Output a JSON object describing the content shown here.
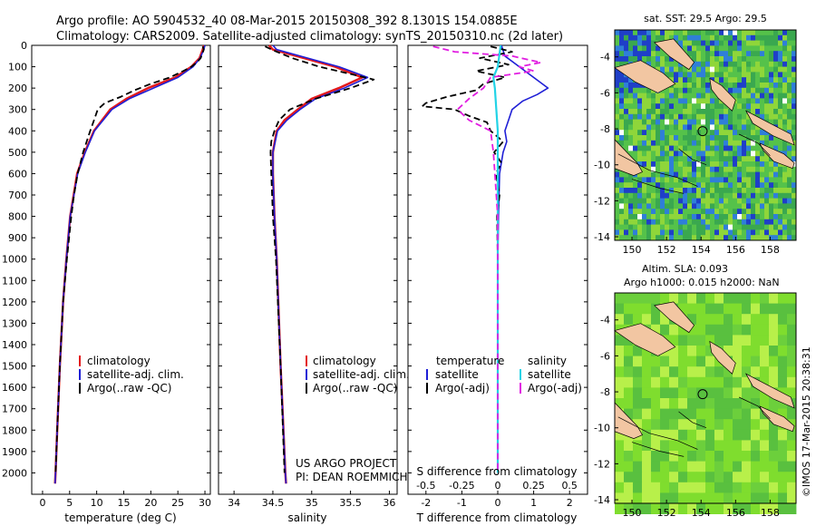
{
  "title": {
    "line1": "Argo profile: AO 5904532_40 08-Mar-2015 20150308_392 8.1301S 154.0885E",
    "line2": "Climatology: CARS2009. Satellite-adjusted climatology: synTS_20150310.nc (2d later)"
  },
  "colors": {
    "climatology": "#e31a1c",
    "satellite": "#1f1fd6",
    "argo": "#000000",
    "sal_satellite": "#22d3e6",
    "sal_argo": "#e11de1",
    "land": "#f2c6a2"
  },
  "chart_data": [
    {
      "type": "line",
      "title": "",
      "xlabel": "temperature (deg C)",
      "ylabel": "",
      "xlim": [
        -2,
        31
      ],
      "ylim": [
        2100,
        0
      ],
      "xticks": [
        0,
        5,
        10,
        15,
        20,
        25,
        30
      ],
      "yticks": [
        0,
        100,
        200,
        300,
        400,
        500,
        600,
        700,
        800,
        900,
        1000,
        1100,
        1200,
        1300,
        1400,
        1500,
        1600,
        1700,
        1800,
        1900,
        2000
      ],
      "legend": [
        "climatology",
        "satellite-adj. clim.",
        "Argo(..raw -QC)"
      ],
      "series": [
        {
          "name": "climatology",
          "depth": [
            0,
            20,
            60,
            100,
            150,
            200,
            250,
            300,
            400,
            500,
            600,
            800,
            1000,
            1200,
            1500,
            1800,
            2000,
            2050
          ],
          "values": [
            29.8,
            29.6,
            29,
            27.5,
            24.5,
            19.5,
            15.5,
            12.5,
            9.5,
            7.8,
            6.4,
            5.1,
            4.4,
            3.8,
            3.2,
            2.7,
            2.4,
            2.3
          ]
        },
        {
          "name": "satellite-adj. clim.",
          "depth": [
            0,
            20,
            60,
            100,
            150,
            200,
            250,
            300,
            400,
            500,
            600,
            800,
            1000,
            1200,
            1500,
            1800,
            2000,
            2050
          ],
          "values": [
            30,
            29.8,
            29.1,
            27.8,
            25,
            20.5,
            16,
            12.8,
            9.6,
            7.9,
            6.5,
            5.1,
            4.4,
            3.8,
            3.2,
            2.7,
            2.4,
            2.3
          ]
        },
        {
          "name": "Argo(..raw -QC)",
          "depth": [
            5,
            20,
            40,
            60,
            80,
            100,
            120,
            150,
            180,
            210,
            240,
            270,
            300,
            350,
            400,
            500,
            600,
            700,
            800,
            1000,
            1200,
            1500,
            1800,
            2000
          ],
          "values": [
            29.6,
            29.8,
            29.5,
            29.2,
            28.5,
            27.5,
            26,
            23.5,
            20,
            17,
            14.5,
            11.5,
            10.2,
            9.5,
            8.8,
            7.5,
            6.5,
            5.8,
            5.3,
            4.5,
            3.8,
            3.2,
            2.7,
            2.4
          ]
        }
      ]
    },
    {
      "type": "line",
      "title": "",
      "xlabel": "salinity",
      "ylabel": "",
      "xlim": [
        33.8,
        36.1
      ],
      "ylim": [
        2100,
        0
      ],
      "xticks": [
        34,
        34.5,
        35,
        35.5,
        36
      ],
      "legend": [
        "climatology",
        "satellite-adj. clim.",
        "Argo(..raw -QC)"
      ],
      "annotation": [
        "US ARGO PROJECT",
        "PI: DEAN ROEMMICH"
      ],
      "series": [
        {
          "name": "climatology",
          "depth": [
            0,
            20,
            60,
            100,
            150,
            200,
            250,
            300,
            350,
            400,
            500,
            600,
            800,
            1000,
            1500,
            2000,
            2050
          ],
          "values": [
            34.45,
            34.5,
            34.9,
            35.3,
            35.65,
            35.35,
            35.0,
            34.82,
            34.65,
            34.55,
            34.5,
            34.5,
            34.52,
            34.55,
            34.6,
            34.66,
            34.67
          ]
        },
        {
          "name": "satellite-adj. clim.",
          "depth": [
            0,
            20,
            60,
            100,
            150,
            200,
            250,
            300,
            350,
            400,
            500,
            600,
            800,
            1000,
            1500,
            2000,
            2050
          ],
          "values": [
            34.5,
            34.55,
            34.95,
            35.35,
            35.72,
            35.42,
            35.05,
            34.85,
            34.68,
            34.56,
            34.5,
            34.5,
            34.52,
            34.55,
            34.6,
            34.66,
            34.67
          ]
        },
        {
          "name": "Argo(..raw -QC)",
          "depth": [
            5,
            30,
            60,
            100,
            130,
            160,
            200,
            250,
            280,
            300,
            350,
            400,
            450,
            500,
            600,
            800,
            1000,
            1500,
            2000
          ],
          "values": [
            34.4,
            34.55,
            34.75,
            35.1,
            35.45,
            35.8,
            35.5,
            35.05,
            34.85,
            34.72,
            34.58,
            34.52,
            34.48,
            34.47,
            34.48,
            34.5,
            34.54,
            34.6,
            34.65
          ]
        }
      ]
    },
    {
      "type": "line",
      "title": "",
      "xlabel": "T difference from climatology",
      "xlabel2": "S difference from climatology",
      "ylabel": "",
      "xlim": [
        -2.5,
        2.5
      ],
      "ylim": [
        2100,
        0
      ],
      "xticks_T": [
        -2,
        -1,
        0,
        1,
        2
      ],
      "xticks_S": [
        -0.5,
        -0.25,
        0,
        0.25,
        0.5
      ],
      "legend_headers": [
        "temperature",
        "salinity"
      ],
      "legend": [
        "satellite",
        "Argo(-adj)",
        "satellite",
        "Argo(-adj)"
      ],
      "series": [
        {
          "name": "T satellite",
          "depth": [
            0,
            50,
            100,
            150,
            200,
            230,
            260,
            300,
            350,
            400,
            450,
            500,
            600,
            800,
            1000,
            1500,
            2000
          ],
          "values": [
            0.1,
            0.2,
            0.6,
            1.0,
            1.4,
            1.1,
            0.7,
            0.4,
            0.3,
            0.2,
            0.25,
            0.15,
            0.05,
            0.02,
            0,
            0,
            0
          ]
        },
        {
          "name": "T Argo(-adj)",
          "depth": [
            5,
            30,
            60,
            90,
            120,
            150,
            180,
            210,
            240,
            270,
            285,
            300,
            330,
            360,
            400,
            450,
            500,
            550,
            600,
            700,
            800,
            1000,
            1200,
            1500,
            2000
          ],
          "values": [
            -0.2,
            0.4,
            -0.5,
            0.3,
            -0.6,
            0.2,
            -0.4,
            -0.6,
            -1.4,
            -2.0,
            -2.1,
            -1.2,
            -0.8,
            -0.3,
            -0.2,
            0.15,
            -0.1,
            0.1,
            -0.05,
            0.05,
            -0.02,
            0,
            0,
            0,
            0
          ]
        },
        {
          "name": "S satellite",
          "depth": [
            0,
            50,
            100,
            150,
            200,
            300,
            400,
            600,
            800,
            1000,
            1500,
            2000
          ],
          "values": [
            0.02,
            0.01,
            0.0,
            -0.03,
            -0.02,
            -0.01,
            0.0,
            0.0,
            0.0,
            0.0,
            0.0,
            0.0
          ]
        },
        {
          "name": "S Argo(-adj)",
          "depth": [
            5,
            30,
            50,
            80,
            100,
            120,
            150,
            200,
            250,
            300,
            350,
            400,
            500,
            600,
            800,
            1000,
            1500,
            2000
          ],
          "values": [
            -0.45,
            -0.3,
            0.1,
            0.3,
            0.15,
            0.25,
            -0.05,
            -0.1,
            -0.2,
            -0.28,
            -0.2,
            -0.05,
            -0.03,
            -0.02,
            0,
            0,
            0,
            0
          ]
        }
      ]
    },
    {
      "type": "heatmap",
      "title": "sat. SST: 29.5 Argo: 29.5",
      "xticks": [
        150,
        152,
        154,
        156,
        158
      ],
      "yticks": [
        -4,
        -6,
        -8,
        -10,
        -12,
        -14
      ],
      "xlim": [
        149,
        159.5
      ],
      "ylim": [
        -14.2,
        -2.5
      ],
      "marker": {
        "lon": 154.09,
        "lat": -8.13
      }
    },
    {
      "type": "heatmap",
      "title": "Altim. SLA: 0.093",
      "subtitle": "Argo h1000: 0.015 h2000: NaN",
      "xticks": [
        150,
        152,
        154,
        156,
        158
      ],
      "yticks": [
        -4,
        -6,
        -8,
        -10,
        -12,
        -14
      ],
      "xlim": [
        149,
        159.5
      ],
      "ylim": [
        -14.2,
        -2.5
      ],
      "marker": {
        "lon": 154.09,
        "lat": -8.13
      }
    }
  ],
  "footer": {
    "stamp": "©IMOS 17-Mar-2015 20:38:31"
  }
}
